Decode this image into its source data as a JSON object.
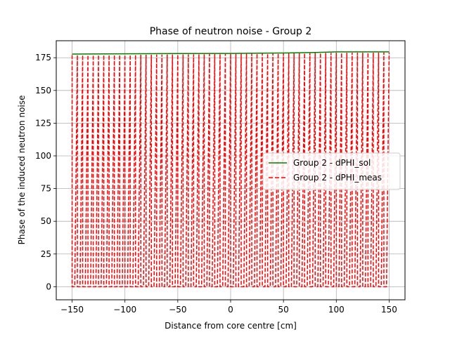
{
  "chart_data": {
    "type": "line",
    "title": "Phase of neutron noise - Group 2",
    "xlabel": "Distance from core centre [cm]",
    "ylabel": "Phase of the induced neutron noise",
    "xlim": [
      -165,
      165
    ],
    "ylim": [
      -10,
      188
    ],
    "xticks": [
      -150,
      -100,
      -50,
      0,
      50,
      100,
      150
    ],
    "yticks": [
      0,
      25,
      50,
      75,
      100,
      125,
      150,
      175
    ],
    "grid": true,
    "legend_position": "center-right",
    "colors": {
      "sol": "#008000",
      "meas": "#ff0000"
    },
    "series": [
      {
        "name": "Group 2 - dPHI_sol",
        "style": "solid",
        "x": [
          -150,
          -100,
          -50,
          0,
          50,
          80,
          100,
          150
        ],
        "y": [
          177.8,
          178.0,
          178.2,
          178.3,
          178.6,
          179.0,
          179.5,
          179.5
        ]
      },
      {
        "name": "Group 2 - dPHI_meas",
        "style": "dashed",
        "x_start": -150,
        "x_end": 150,
        "low": 0,
        "oscillations": 60,
        "high_by_x": {
          "x": [
            -150,
            -100,
            -50,
            0,
            50,
            100,
            150
          ],
          "y": [
            177.0,
            177.2,
            177.5,
            178.0,
            178.3,
            178.8,
            179.0
          ]
        }
      }
    ]
  }
}
